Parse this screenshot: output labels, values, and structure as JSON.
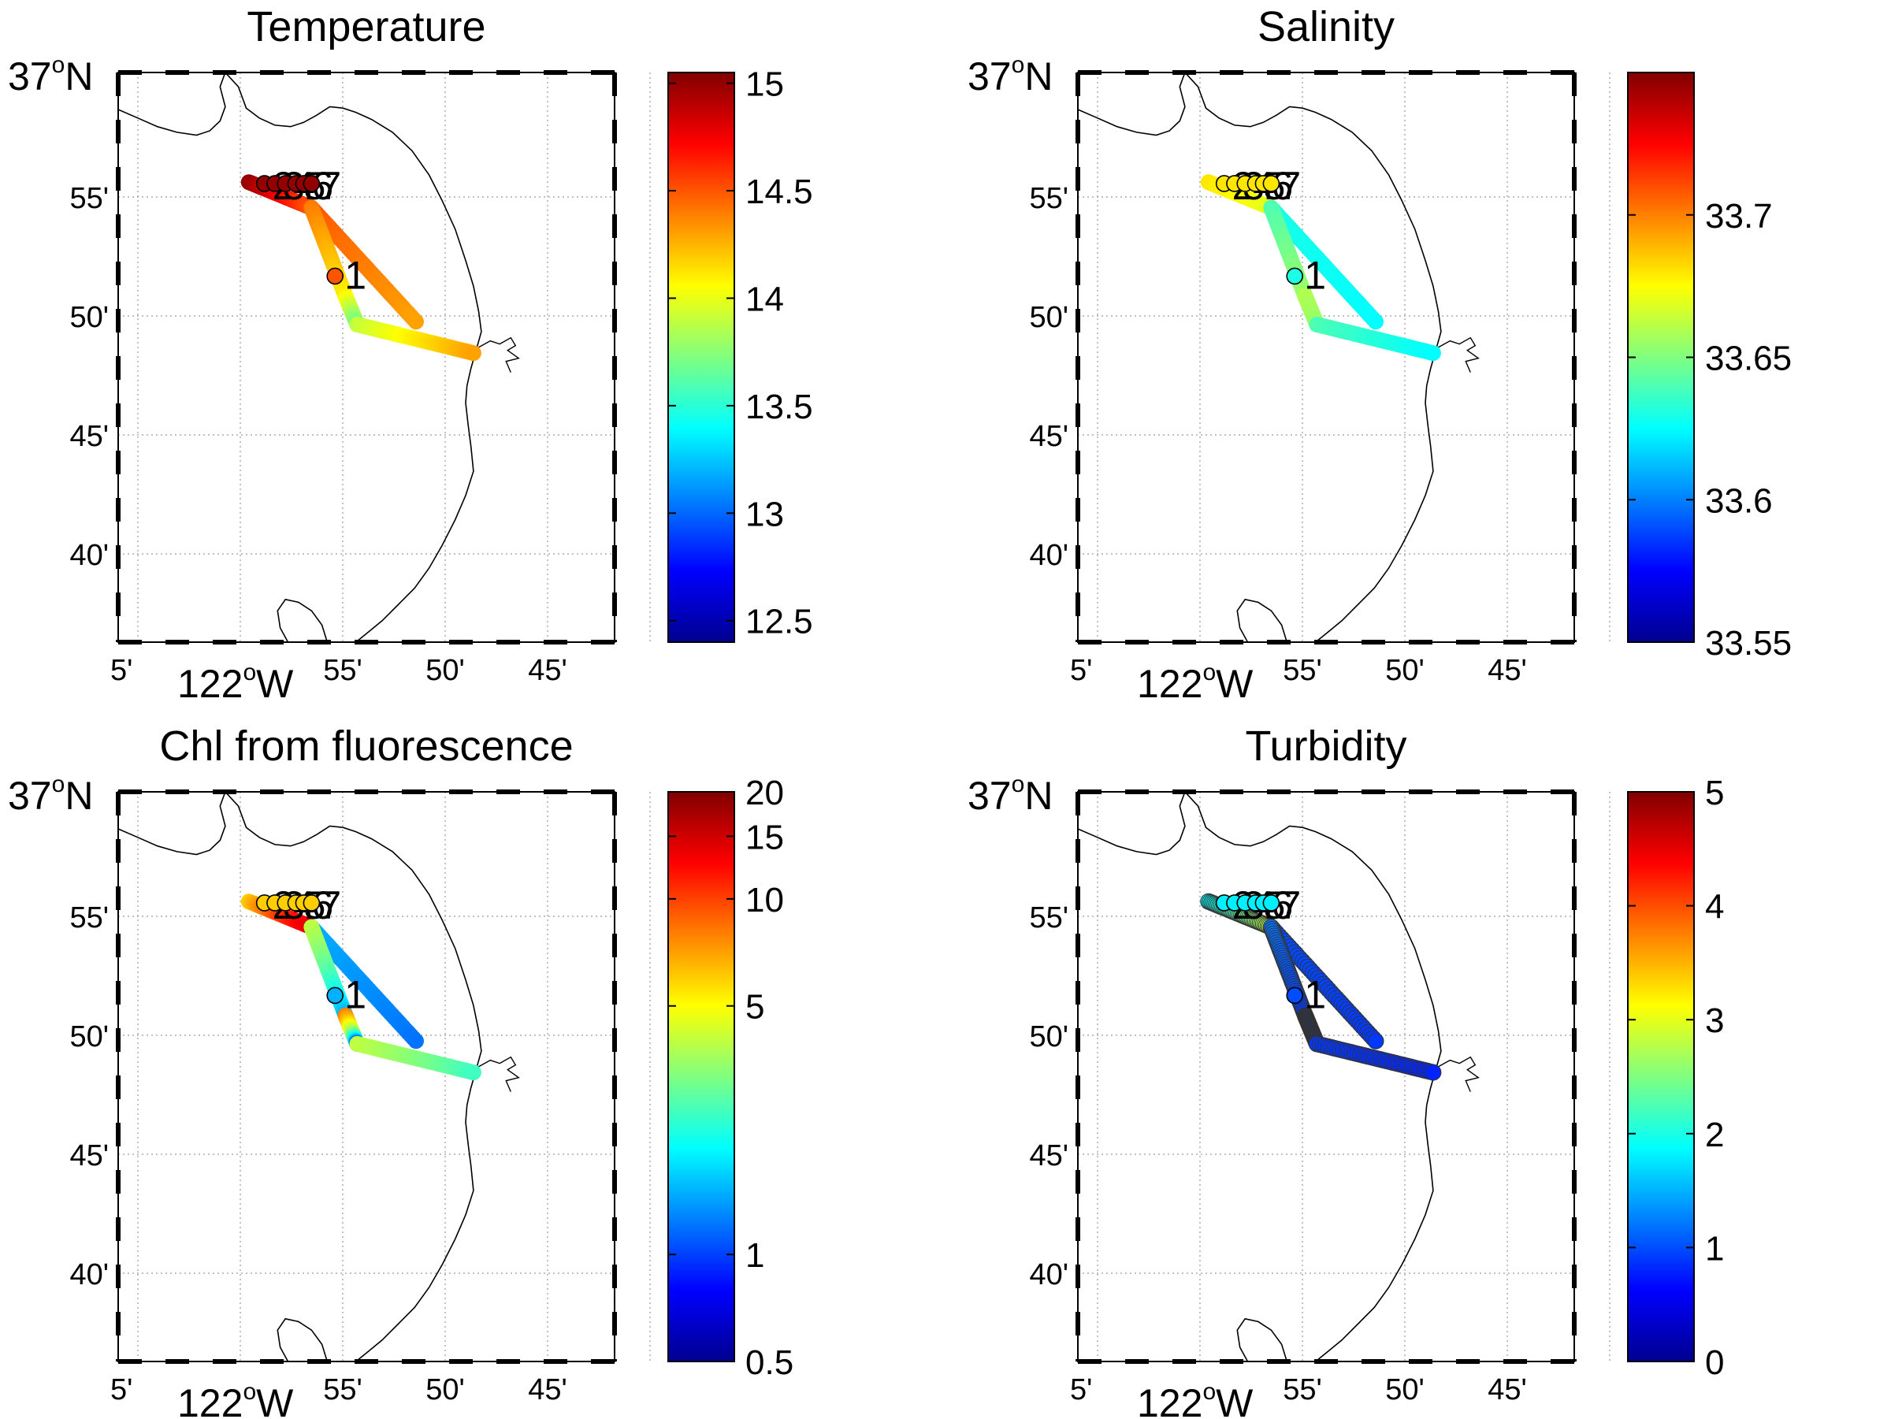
{
  "figure": {
    "lat_labels": [
      "37",
      "N",
      "55'",
      "50'",
      "45'",
      "40'"
    ],
    "lon_labels": [
      "5'",
      "122",
      "W",
      "55'",
      "50'",
      "45'"
    ],
    "degree_symbol": "o"
  },
  "palette": {
    "jet": [
      "#00008f",
      "#0000ff",
      "#0080ff",
      "#00ffff",
      "#80ff80",
      "#ffff00",
      "#ff8000",
      "#ff0000",
      "#800000"
    ],
    "coastline": "#000000",
    "grid": "#9a9a9a"
  },
  "station_labels": [
    "1",
    "2",
    "3",
    "4",
    "5",
    "6",
    "7"
  ],
  "chart_data": [
    {
      "type": "scatter",
      "title": "Temperature",
      "colorbar": {
        "min": 12.4,
        "max": 15.05,
        "scale": "linear",
        "ticks": [
          12.5,
          13,
          13.5,
          14,
          14.5,
          15
        ],
        "tick_labels": [
          "12.5",
          "13",
          "13.5",
          "14",
          "14.5",
          "15"
        ]
      },
      "xlim": [
        -122.1,
        -121.72
      ],
      "ylim": [
        36.6,
        37.0
      ],
      "segments": [
        {
          "name": "",
          "from": [
            -122.0,
            36.923
          ],
          "to": [
            -121.952,
            36.905
          ],
          "values": [
            15.0,
            14.5
          ]
        },
        {
          "name": "",
          "from": [
            -121.952,
            36.905
          ],
          "to": [
            -121.872,
            36.825
          ],
          "values": [
            14.5,
            14.3
          ]
        },
        {
          "name": "",
          "from": [
            -121.952,
            36.905
          ],
          "to": [
            -121.926,
            36.843
          ],
          "values": [
            14.4,
            14.1
          ]
        },
        {
          "name": "",
          "from": [
            -121.926,
            36.843
          ],
          "to": [
            -121.917,
            36.823
          ],
          "values": [
            14.1,
            13.7
          ]
        },
        {
          "name": "",
          "from": [
            -121.917,
            36.823
          ],
          "to": [
            -121.828,
            36.803
          ],
          "values": [
            13.9,
            14.3
          ]
        }
      ]
    },
    {
      "type": "scatter",
      "title": "Salinity",
      "colorbar": {
        "min": 33.55,
        "max": 33.75,
        "scale": "linear",
        "ticks": [
          33.55,
          33.6,
          33.65,
          33.7
        ],
        "tick_labels": [
          "33.55",
          "33.6",
          "33.65",
          "33.7"
        ]
      },
      "xlim": [
        -122.1,
        -121.72
      ],
      "ylim": [
        36.6,
        37.0
      ],
      "segments": [
        {
          "name": "",
          "from": [
            -122.0,
            36.923
          ],
          "to": [
            -121.952,
            36.905
          ],
          "values": [
            33.68,
            33.67
          ]
        },
        {
          "name": "",
          "from": [
            -121.952,
            36.905
          ],
          "to": [
            -121.872,
            36.825
          ],
          "values": [
            33.63,
            33.625
          ]
        },
        {
          "name": "",
          "from": [
            -121.952,
            36.905
          ],
          "to": [
            -121.926,
            36.843
          ],
          "values": [
            33.64,
            33.655
          ]
        },
        {
          "name": "",
          "from": [
            -121.926,
            36.843
          ],
          "to": [
            -121.917,
            36.823
          ],
          "values": [
            33.66,
            33.655
          ]
        },
        {
          "name": "",
          "from": [
            -121.917,
            36.823
          ],
          "to": [
            -121.828,
            36.803
          ],
          "values": [
            33.64,
            33.625
          ]
        }
      ]
    },
    {
      "type": "scatter",
      "title": "Chl from fluorescence",
      "colorbar": {
        "min": 0.5,
        "max": 20,
        "scale": "log",
        "ticks": [
          0.5,
          1,
          5,
          10,
          15,
          20
        ],
        "tick_labels": [
          "0.5",
          "1",
          "5",
          "10",
          "15",
          "20"
        ]
      },
      "xlim": [
        -122.1,
        -121.72
      ],
      "ylim": [
        36.6,
        37.0
      ],
      "segments": [
        {
          "name": "",
          "from": [
            -122.0,
            36.923
          ],
          "to": [
            -121.952,
            36.905
          ],
          "values": [
            6,
            14
          ]
        },
        {
          "name": "",
          "from": [
            -121.952,
            36.905
          ],
          "to": [
            -121.872,
            36.825
          ],
          "values": [
            1.5,
            1.2
          ]
        },
        {
          "name": "",
          "from": [
            -121.952,
            36.905
          ],
          "to": [
            -121.926,
            36.843
          ],
          "values": [
            4,
            1.5
          ]
        },
        {
          "name": "",
          "from": [
            -121.926,
            36.843
          ],
          "to": [
            -121.917,
            36.823
          ],
          "values": [
            8,
            1.0
          ]
        },
        {
          "name": "",
          "from": [
            -121.917,
            36.823
          ],
          "to": [
            -121.828,
            36.803
          ],
          "values": [
            4,
            2.5
          ]
        }
      ]
    },
    {
      "type": "scatter",
      "title": "Turbidity",
      "colorbar": {
        "min": 0,
        "max": 5,
        "scale": "linear",
        "ticks": [
          0,
          1,
          2,
          3,
          4,
          5
        ],
        "tick_labels": [
          "0",
          "1",
          "2",
          "3",
          "4",
          "5"
        ]
      },
      "xlim": [
        -122.1,
        -121.72
      ],
      "ylim": [
        36.6,
        37.0
      ],
      "segments": [
        {
          "name": "",
          "from": [
            -122.0,
            36.923
          ],
          "to": [
            -121.952,
            36.905
          ],
          "values": [
            1.8,
            2.8
          ]
        },
        {
          "name": "",
          "from": [
            -121.952,
            36.905
          ],
          "to": [
            -121.872,
            36.825
          ],
          "values": [
            1.0,
            0.9
          ]
        },
        {
          "name": "",
          "from": [
            -121.952,
            36.905
          ],
          "to": [
            -121.926,
            36.843
          ],
          "values": [
            1.2,
            0.9
          ]
        },
        {
          "name": "",
          "from": [
            -121.926,
            36.843
          ],
          "to": [
            -121.917,
            36.823
          ],
          "values": [
            0.9,
            0.8
          ]
        },
        {
          "name": "",
          "from": [
            -121.917,
            36.823
          ],
          "to": [
            -121.828,
            36.803
          ],
          "values": [
            0.9,
            0.8
          ]
        }
      ]
    }
  ]
}
